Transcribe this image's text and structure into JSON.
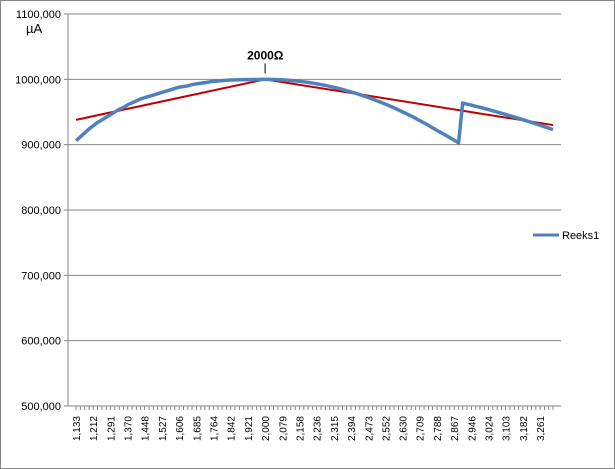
{
  "chart_data": {
    "type": "line",
    "ylabel": "µA",
    "ylim": [
      500000,
      1100000
    ],
    "yticks": [
      500000,
      600000,
      700000,
      800000,
      900000,
      1000000,
      1100000
    ],
    "ytick_labels": [
      "500,000",
      "600,000",
      "700,000",
      "800,000",
      "900,000",
      "1000,000",
      "1100,000"
    ],
    "grid": "horizontal",
    "legend": "right",
    "annotation": "2000Ω",
    "annotation_x": 2000,
    "x": [
      1133,
      1153,
      1173,
      1193,
      1212,
      1232,
      1252,
      1272,
      1291,
      1311,
      1331,
      1351,
      1370,
      1390,
      1410,
      1429,
      1448,
      1468,
      1488,
      1507,
      1527,
      1547,
      1567,
      1586,
      1606,
      1626,
      1646,
      1665,
      1685,
      1705,
      1724,
      1744,
      1764,
      1784,
      1803,
      1823,
      1842,
      1862,
      1882,
      1902,
      1921,
      1941,
      1961,
      1980,
      2000,
      2020,
      2039,
      2059,
      2079,
      2099,
      2118,
      2138,
      2158,
      2177,
      2197,
      2217,
      2236,
      2256,
      2276,
      2296,
      2315,
      2335,
      2355,
      2374,
      2394,
      2414,
      2434,
      2453,
      2473,
      2493,
      2512,
      2532,
      2552,
      2572,
      2591,
      2611,
      2630,
      2650,
      2670,
      2690,
      2709,
      2729,
      2749,
      2768,
      2788,
      2808,
      2828,
      2847,
      2867,
      2887,
      2906,
      2926,
      2946,
      2966,
      2985,
      3005,
      3024,
      3044,
      3064,
      3084,
      3103,
      3123,
      3143,
      3162,
      3182,
      3202,
      3221,
      3241,
      3261,
      3281,
      3300,
      3320
    ],
    "x_tick_labels": [
      "1,133",
      "1,212",
      "1,291",
      "1,370",
      "1,448",
      "1,527",
      "1,606",
      "1,685",
      "1,764",
      "1,842",
      "1,921",
      "2,000",
      "2,079",
      "2,158",
      "2,236",
      "2,315",
      "2,394",
      "2,473",
      "2,552",
      "2,630",
      "2,709",
      "2,788",
      "2,867",
      "2,946",
      "3,024",
      "3,103",
      "3,182",
      "3,261"
    ],
    "series": [
      {
        "name": "Reeks1",
        "color": "#4f81bd",
        "values": [
          906000,
          912000,
          918000,
          924000,
          929000,
          934000,
          938000,
          942000,
          946000,
          950000,
          954000,
          957000,
          961000,
          964000,
          967000,
          970000,
          972000,
          974000,
          976000,
          978000,
          980000,
          982000,
          984000,
          986000,
          988000,
          989000,
          990000,
          992000,
          993000,
          994000,
          995000,
          996000,
          997000,
          997500,
          998000,
          998500,
          999000,
          999200,
          999400,
          999500,
          999600,
          999700,
          999800,
          999900,
          1000000,
          999900,
          999700,
          999500,
          999200,
          998800,
          998300,
          997700,
          997000,
          996200,
          995300,
          994300,
          993200,
          992000,
          990700,
          989300,
          987800,
          986200,
          984500,
          982700,
          980800,
          978800,
          976700,
          974500,
          972200,
          969800,
          967300,
          964700,
          962000,
          959200,
          956300,
          953300,
          950200,
          947000,
          943700,
          940300,
          936800,
          933200,
          929500,
          925700,
          921800,
          918200,
          914500,
          910700,
          906800,
          903000,
          899500,
          896000,
          892500,
          949000,
          946500,
          944000,
          941500,
          939000,
          936500,
          934000,
          931500,
          929000,
          926500,
          924000,
          921000,
          918000,
          915000,
          912000,
          909000,
          906000,
          903000,
          900000
        ]
      }
    ],
    "reference_lines": [
      {
        "color": "#c00000",
        "x": [
          1133,
          2000,
          3320
        ],
        "y": [
          938000,
          1000000,
          930000
        ]
      }
    ],
    "colors": {
      "axis": "#868686",
      "grid": "#868686",
      "series": "#4f81bd",
      "reference": "#c00000"
    }
  }
}
